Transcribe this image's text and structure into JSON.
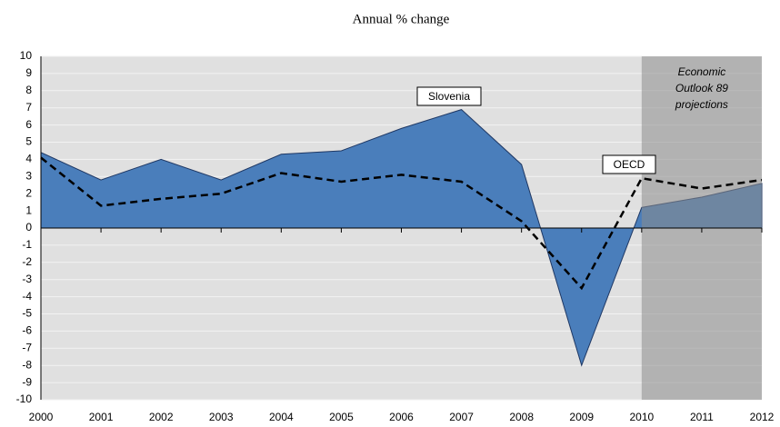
{
  "chart_data": {
    "type": "area",
    "title": "Annual % change",
    "categories": [
      "2000",
      "2001",
      "2002",
      "2003",
      "2004",
      "2005",
      "2006",
      "2007",
      "2008",
      "2009",
      "2010",
      "2011",
      "2012"
    ],
    "series": [
      {
        "name": "Slovenia",
        "color": "#4a7ebb",
        "values": [
          4.4,
          2.8,
          4.0,
          2.8,
          4.3,
          4.5,
          5.8,
          6.9,
          3.7,
          -8.0,
          1.2,
          1.8,
          2.6
        ]
      },
      {
        "name": "OECD",
        "color": "#000000",
        "values": [
          4.1,
          1.3,
          1.7,
          2.0,
          3.2,
          2.7,
          3.1,
          2.7,
          0.4,
          -3.5,
          2.9,
          2.3,
          2.8
        ]
      }
    ],
    "ylim": [
      -10,
      10
    ],
    "yticks": [
      -10,
      -9,
      -8,
      -7,
      -6,
      -5,
      -4,
      -3,
      -2,
      -1,
      0,
      1,
      2,
      3,
      4,
      5,
      6,
      7,
      8,
      9,
      10
    ],
    "grid": true,
    "projection_from": "2010",
    "projection_label": [
      "Economic",
      "Outlook 89",
      "projections"
    ]
  }
}
